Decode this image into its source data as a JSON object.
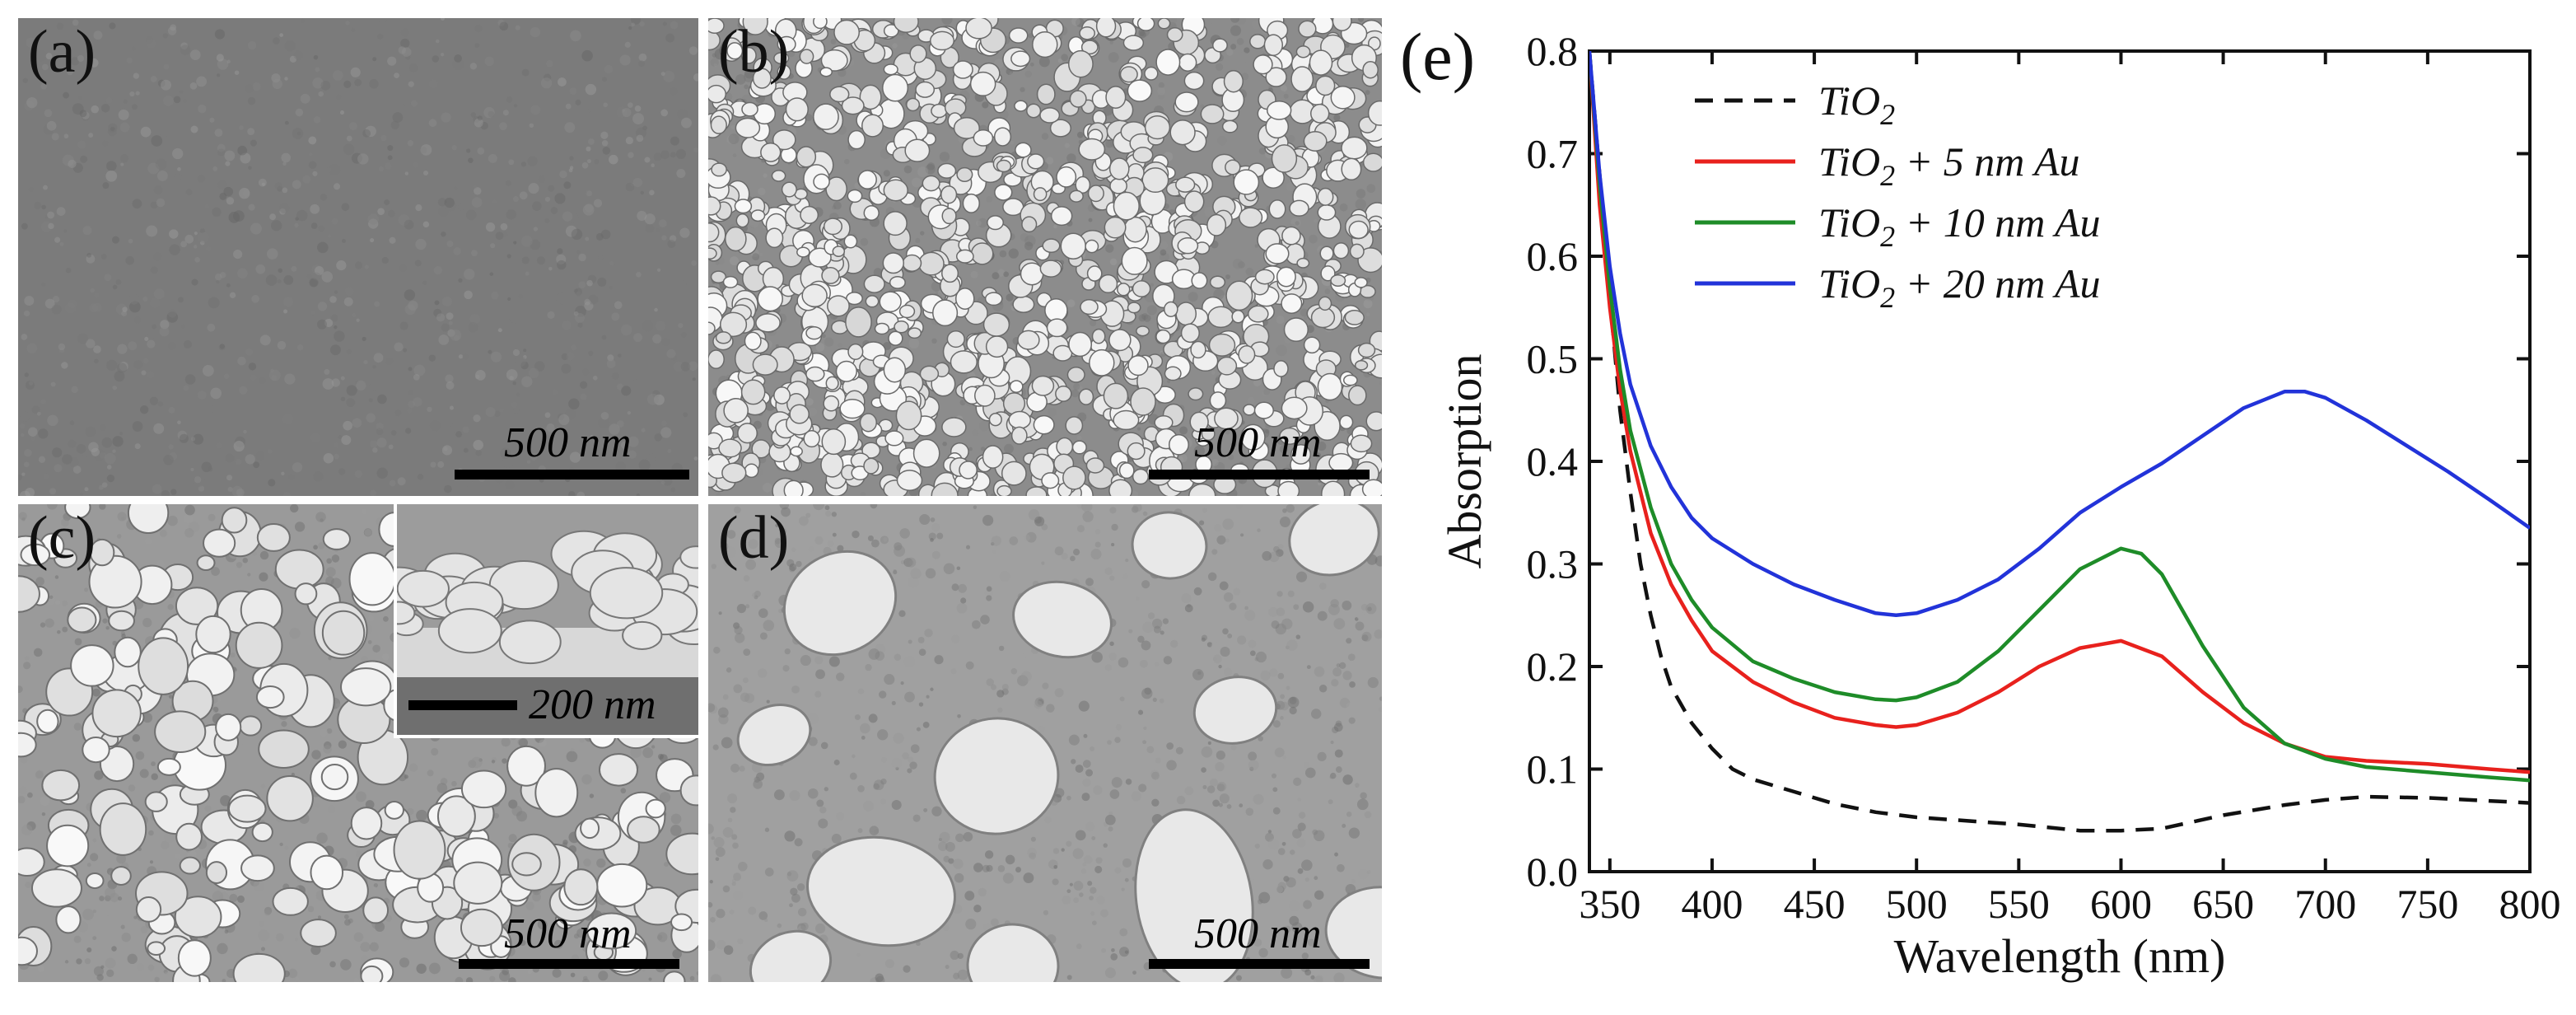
{
  "panels": [
    {
      "id": "a",
      "label": "(a)",
      "scale": "500 nm",
      "style": "flat",
      "tone": "#7b7b7b"
    },
    {
      "id": "b",
      "label": "(b)",
      "scale": "500 nm",
      "style": "dense-particles",
      "tone": "#8c8c8c"
    },
    {
      "id": "c",
      "label": "(c)",
      "scale": "500 nm",
      "style": "medium-particles",
      "tone": "#9a9a9a",
      "inset": {
        "scale": "200 nm"
      }
    },
    {
      "id": "d",
      "label": "(d)",
      "scale": "500 nm",
      "style": "large-islands",
      "tone": "#a0a0a0"
    }
  ],
  "chart_data": {
    "type": "line",
    "panel_label": "(e)",
    "xlabel": "Wavelength (nm)",
    "ylabel": "Absorption",
    "xlim": [
      340,
      800
    ],
    "ylim": [
      0,
      0.8
    ],
    "xticks": [
      350,
      400,
      450,
      500,
      550,
      600,
      650,
      700,
      750,
      800
    ],
    "yticks": [
      0.0,
      0.1,
      0.2,
      0.3,
      0.4,
      0.5,
      0.6,
      0.7,
      0.8
    ],
    "legend_position": "top-left",
    "series": [
      {
        "name": "TiO2",
        "name_main": "TiO",
        "name_sub": "2",
        "name_suffix": "",
        "color": "#111111",
        "dashed": true,
        "points": [
          [
            340,
            0.8
          ],
          [
            345,
            0.68
          ],
          [
            350,
            0.56
          ],
          [
            355,
            0.45
          ],
          [
            360,
            0.37
          ],
          [
            365,
            0.3
          ],
          [
            370,
            0.25
          ],
          [
            375,
            0.21
          ],
          [
            380,
            0.18
          ],
          [
            390,
            0.145
          ],
          [
            400,
            0.12
          ],
          [
            410,
            0.1
          ],
          [
            420,
            0.09
          ],
          [
            440,
            0.078
          ],
          [
            460,
            0.066
          ],
          [
            480,
            0.058
          ],
          [
            500,
            0.053
          ],
          [
            550,
            0.046
          ],
          [
            580,
            0.04
          ],
          [
            600,
            0.04
          ],
          [
            620,
            0.042
          ],
          [
            650,
            0.055
          ],
          [
            680,
            0.065
          ],
          [
            700,
            0.07
          ],
          [
            720,
            0.073
          ],
          [
            750,
            0.072
          ],
          [
            780,
            0.069
          ],
          [
            800,
            0.067
          ]
        ]
      },
      {
        "name": "TiO2 + 5 nm Au",
        "name_main": "TiO",
        "name_sub": "2",
        "name_suffix": " + 5 nm Au",
        "color": "#e8211d",
        "dashed": false,
        "points": [
          [
            340,
            0.8
          ],
          [
            345,
            0.65
          ],
          [
            350,
            0.55
          ],
          [
            355,
            0.47
          ],
          [
            360,
            0.41
          ],
          [
            370,
            0.33
          ],
          [
            380,
            0.28
          ],
          [
            390,
            0.245
          ],
          [
            400,
            0.215
          ],
          [
            420,
            0.185
          ],
          [
            440,
            0.165
          ],
          [
            460,
            0.15
          ],
          [
            480,
            0.143
          ],
          [
            490,
            0.141
          ],
          [
            500,
            0.143
          ],
          [
            520,
            0.155
          ],
          [
            540,
            0.175
          ],
          [
            560,
            0.2
          ],
          [
            580,
            0.218
          ],
          [
            600,
            0.225
          ],
          [
            620,
            0.21
          ],
          [
            640,
            0.175
          ],
          [
            660,
            0.145
          ],
          [
            680,
            0.125
          ],
          [
            700,
            0.112
          ],
          [
            720,
            0.108
          ],
          [
            750,
            0.105
          ],
          [
            780,
            0.1
          ],
          [
            800,
            0.097
          ]
        ]
      },
      {
        "name": "TiO2 + 10 nm Au",
        "name_main": "TiO",
        "name_sub": "2",
        "name_suffix": " + 10 nm Au",
        "color": "#1e8c28",
        "dashed": false,
        "points": [
          [
            340,
            0.8
          ],
          [
            345,
            0.67
          ],
          [
            350,
            0.57
          ],
          [
            355,
            0.49
          ],
          [
            360,
            0.43
          ],
          [
            370,
            0.355
          ],
          [
            380,
            0.3
          ],
          [
            390,
            0.265
          ],
          [
            400,
            0.238
          ],
          [
            420,
            0.205
          ],
          [
            440,
            0.188
          ],
          [
            460,
            0.175
          ],
          [
            480,
            0.168
          ],
          [
            490,
            0.167
          ],
          [
            500,
            0.17
          ],
          [
            520,
            0.185
          ],
          [
            540,
            0.215
          ],
          [
            560,
            0.255
          ],
          [
            580,
            0.295
          ],
          [
            600,
            0.315
          ],
          [
            610,
            0.31
          ],
          [
            620,
            0.29
          ],
          [
            640,
            0.22
          ],
          [
            660,
            0.16
          ],
          [
            680,
            0.125
          ],
          [
            700,
            0.11
          ],
          [
            720,
            0.102
          ],
          [
            750,
            0.097
          ],
          [
            780,
            0.092
          ],
          [
            800,
            0.089
          ]
        ]
      },
      {
        "name": "TiO2 + 20 nm Au",
        "name_main": "TiO",
        "name_sub": "2",
        "name_suffix": " + 20 nm Au",
        "color": "#2233d9",
        "dashed": false,
        "points": [
          [
            340,
            0.8
          ],
          [
            345,
            0.68
          ],
          [
            350,
            0.59
          ],
          [
            355,
            0.525
          ],
          [
            360,
            0.475
          ],
          [
            370,
            0.415
          ],
          [
            380,
            0.375
          ],
          [
            390,
            0.345
          ],
          [
            400,
            0.325
          ],
          [
            420,
            0.3
          ],
          [
            440,
            0.28
          ],
          [
            460,
            0.265
          ],
          [
            480,
            0.252
          ],
          [
            490,
            0.25
          ],
          [
            500,
            0.252
          ],
          [
            520,
            0.265
          ],
          [
            540,
            0.285
          ],
          [
            560,
            0.315
          ],
          [
            580,
            0.35
          ],
          [
            600,
            0.375
          ],
          [
            620,
            0.398
          ],
          [
            640,
            0.425
          ],
          [
            660,
            0.452
          ],
          [
            680,
            0.468
          ],
          [
            690,
            0.468
          ],
          [
            700,
            0.462
          ],
          [
            720,
            0.44
          ],
          [
            740,
            0.415
          ],
          [
            760,
            0.39
          ],
          [
            780,
            0.363
          ],
          [
            800,
            0.335
          ]
        ]
      }
    ]
  }
}
